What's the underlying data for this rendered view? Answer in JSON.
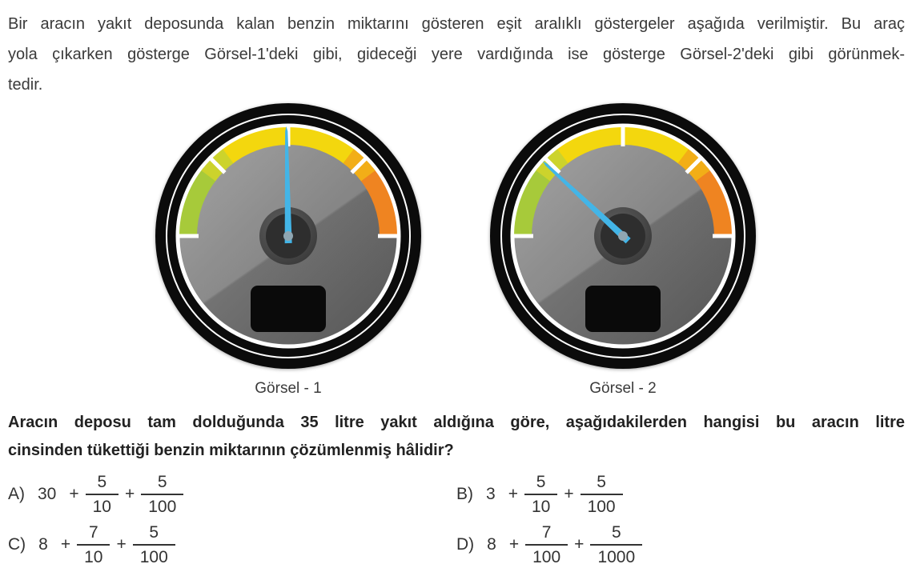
{
  "paragraph": {
    "lines": [
      "Bir aracın yakıt deposunda kalan benzin miktarını gösteren eşit aralıklı göstergeler aşağıda verilmiştir. Bu araç",
      "yola çıkarken gösterge Görsel-1'deki gibi, gideceği yere vardığında ise gösterge Görsel-2'deki gibi görünmek-",
      "tedir."
    ]
  },
  "gauges": [
    {
      "caption": "Görsel - 1",
      "needle_angle_deg": 91
    },
    {
      "caption": "Görsel - 2",
      "needle_angle_deg": 137
    }
  ],
  "gauge_info": {
    "tick_angles_deg": [
      0,
      45,
      90,
      135,
      180
    ],
    "band_segments": [
      "green",
      "yellow",
      "orange"
    ]
  },
  "colors": {
    "band_green": "#a7ca3a",
    "band_yellow": "#f3d70e",
    "band_orange": "#ef8421",
    "needle_blue": "#43b5e7"
  },
  "question": {
    "lines": [
      "Aracın deposu tam dolduğunda 35 litre yakıt aldığına göre, aşağıdakilerden hangisi bu aracın litre",
      "cinsinden tükettiği benzin miktarının çözümlenmiş hâlidir?"
    ]
  },
  "symbols": {
    "plus": "+"
  },
  "options": [
    {
      "label": "A)",
      "whole": "30",
      "f1": {
        "num": "5",
        "den": "10"
      },
      "f2": {
        "num": "5",
        "den": "100"
      }
    },
    {
      "label": "B)",
      "whole": "3",
      "f1": {
        "num": "5",
        "den": "10"
      },
      "f2": {
        "num": "5",
        "den": "100"
      }
    },
    {
      "label": "C)",
      "whole": "8",
      "f1": {
        "num": "7",
        "den": "10"
      },
      "f2": {
        "num": "5",
        "den": "100"
      }
    },
    {
      "label": "D)",
      "whole": "8",
      "f1": {
        "num": "7",
        "den": "100"
      },
      "f2": {
        "num": "5",
        "den": "1000"
      }
    }
  ]
}
